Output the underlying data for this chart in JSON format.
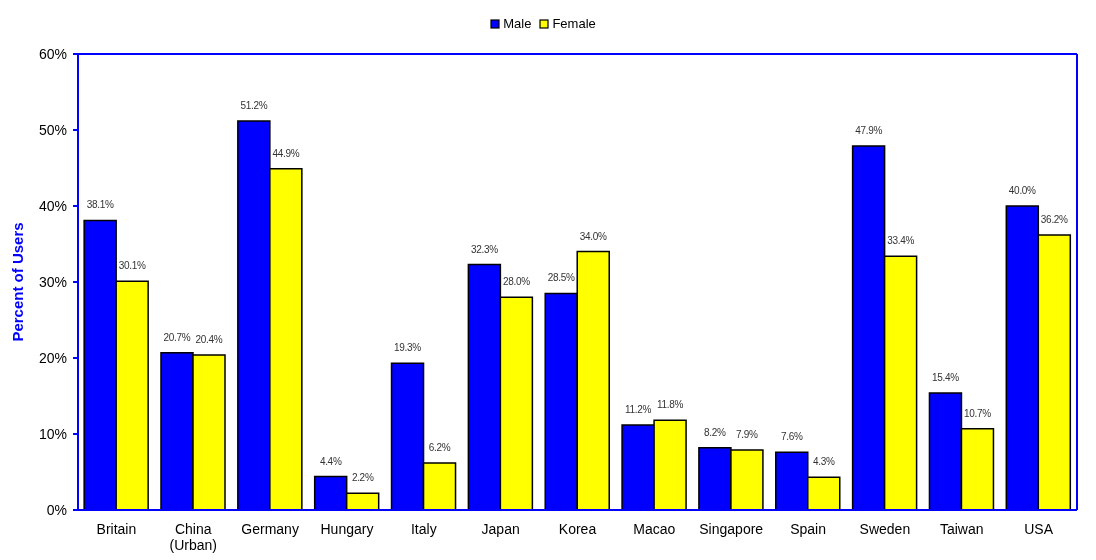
{
  "chart_data": {
    "type": "bar",
    "ylabel": "Percent of Users",
    "categories": [
      "Britain",
      "China (Urban)",
      "Germany",
      "Hungary",
      "Italy",
      "Japan",
      "Korea",
      "Macao",
      "Singapore",
      "Spain",
      "Sweden",
      "Taiwan",
      "USA"
    ],
    "series": [
      {
        "name": "Male",
        "color": "#0000ff",
        "values": [
          38.1,
          20.7,
          51.2,
          4.4,
          19.3,
          32.3,
          28.5,
          11.2,
          8.2,
          7.6,
          47.9,
          15.4,
          40.0
        ],
        "value_labels": [
          "38.1%",
          "20.7%",
          "51.2%",
          "4.4%",
          "19.3%",
          "32.3%",
          "28.5%",
          "11.2%",
          "8.2%",
          "7.6%",
          "47.9%",
          "15.4%",
          "40.0%"
        ]
      },
      {
        "name": "Female",
        "color": "#ffff00",
        "values": [
          30.1,
          20.4,
          44.9,
          2.2,
          6.2,
          28.0,
          34.0,
          11.8,
          7.9,
          4.3,
          33.4,
          10.7,
          36.2
        ],
        "value_labels": [
          "30.1%",
          "20.4%",
          "44.9%",
          "2.2%",
          "6.2%",
          "28.0%",
          "34.0%",
          "11.8%",
          "7.9%",
          "4.3%",
          "33.4%",
          "10.7%",
          "36.2%"
        ]
      }
    ],
    "ylim": [
      0,
      60
    ],
    "yticks": [
      {
        "value": 0,
        "label": "0%"
      },
      {
        "value": 10,
        "label": "10%"
      },
      {
        "value": 20,
        "label": "20%"
      },
      {
        "value": 30,
        "label": "30%"
      },
      {
        "value": 40,
        "label": "40%"
      },
      {
        "value": 50,
        "label": "50%"
      },
      {
        "value": 60,
        "label": "60%"
      }
    ],
    "legend": "top"
  }
}
